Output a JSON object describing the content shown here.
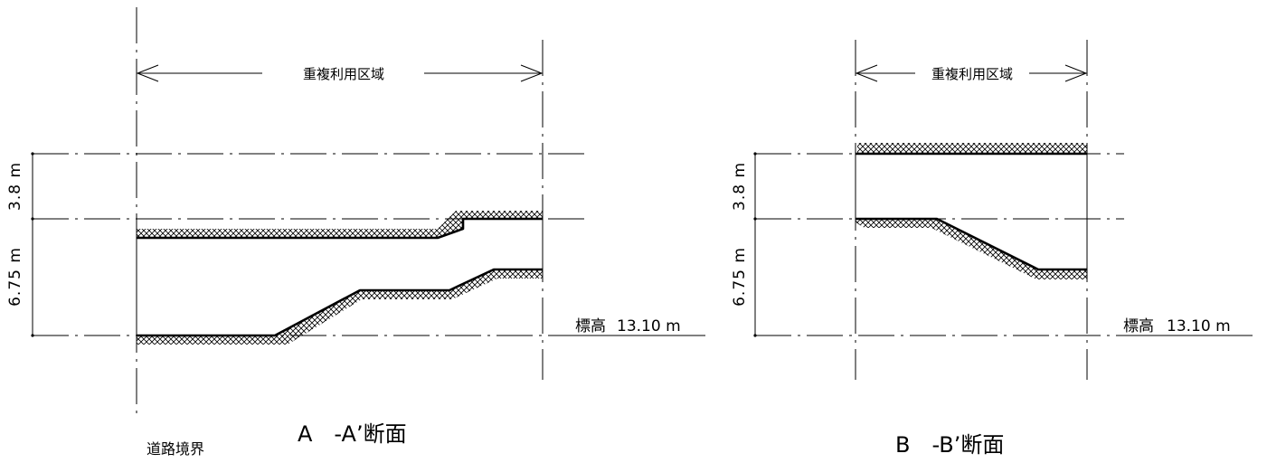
{
  "section_a": {
    "title": "A　-A’断面",
    "span_label": "重複利用区域",
    "road_boundary_label": "道路境界",
    "dimension_upper": "3.8 m",
    "dimension_lower": "6.75 m",
    "elevation_label": "標高",
    "elevation_value": "13.10 m"
  },
  "section_b": {
    "title": "B　-B’断面",
    "span_label": "重複利用区域",
    "dimension_upper": "3.8 m",
    "dimension_lower": "6.75 m",
    "elevation_label": "標高",
    "elevation_value": "13.10 m"
  }
}
